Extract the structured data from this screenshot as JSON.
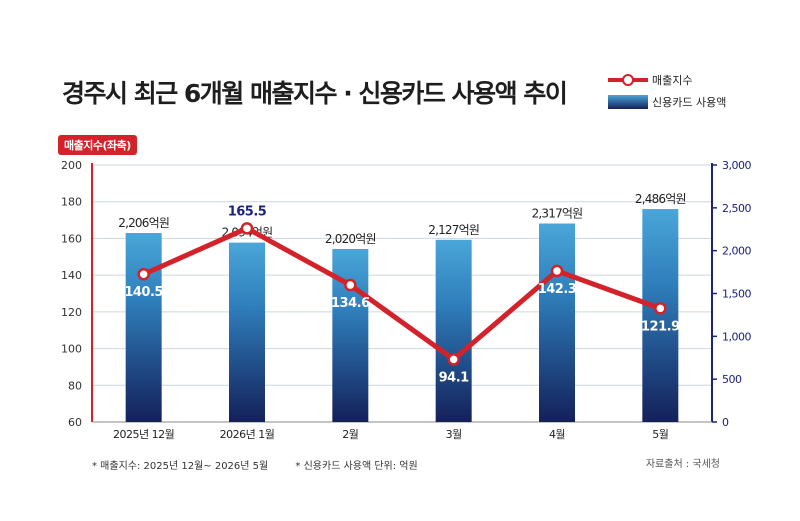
{
  "title": "경주시 최근 6개월 매출지수 · 신용카드 사용액 추이",
  "legend": {
    "line_label": "매출지수",
    "bar_label": "신용카드 사용액"
  },
  "left_axis_badge": "매출지수(좌축)",
  "footnotes": {
    "note1": "* 매출지수: 2025년 12월~ 2026년 5월",
    "note2": "* 신용카드 사용액 단위: 억원"
  },
  "source": "자료출처 : 국세청",
  "colors": {
    "line": "#d3222a",
    "bar_top": "#4aa6d8",
    "bar_bottom": "#14205a",
    "right_axis": "#1a237e",
    "grid": "#cfd6de"
  },
  "chart_data": {
    "type": "bar+line",
    "categories": [
      "2025년 12월",
      "2026년 1월",
      "2월",
      "3월",
      "4월",
      "5월"
    ],
    "series": [
      {
        "name": "신용카드 사용액",
        "type": "bar",
        "axis": "right",
        "values": [
          2206,
          2094,
          2020,
          2127,
          2317,
          2486
        ],
        "labels": [
          "2,206억원",
          "2,094억원",
          "2,020억원",
          "2,127억원",
          "2,317억원",
          "2,486억원"
        ]
      },
      {
        "name": "매출지수",
        "type": "line",
        "axis": "left",
        "values": [
          140.5,
          165.5,
          134.6,
          94.1,
          142.3,
          121.9
        ],
        "labels": [
          "140.5",
          "165.5",
          "134.6",
          "94.1",
          "142.3",
          "121.9"
        ]
      }
    ],
    "y_left": {
      "min": 60,
      "max": 200,
      "ticks": [
        60,
        80,
        100,
        120,
        140,
        160,
        180,
        200
      ],
      "tick_labels": [
        "60",
        "80",
        "100",
        "120",
        "140",
        "160",
        "180",
        "200"
      ]
    },
    "y_right": {
      "min": 0,
      "max": 3000,
      "ticks": [
        0,
        500,
        1000,
        1500,
        2000,
        2500,
        3000
      ],
      "tick_labels": [
        "0",
        "500",
        "1,000",
        "1,500",
        "2,000",
        "2,500",
        "3,000"
      ]
    },
    "grid": true
  }
}
